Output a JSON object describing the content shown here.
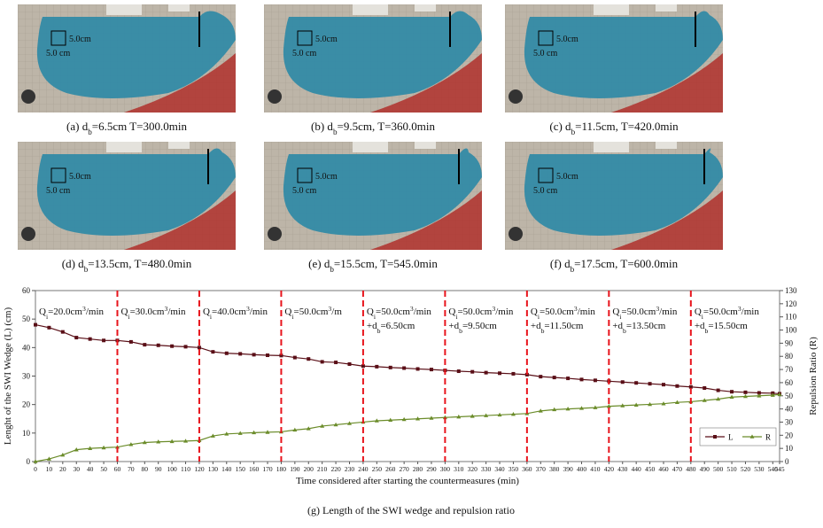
{
  "photos": [
    {
      "caption": [
        "(a) d",
        {
          "sub": "b"
        },
        "=6.5cm T=300.0min"
      ],
      "h_label": "5.0cm",
      "v_label": "5.0 cm"
    },
    {
      "caption": [
        "(b) d",
        {
          "sub": "b"
        },
        "=9.5cm, T=360.0min"
      ],
      "h_label": "5.0cm",
      "v_label": "5.0 cm"
    },
    {
      "caption": [
        "(c) d",
        {
          "sub": "b"
        },
        "=11.5cm, T=420.0min"
      ],
      "h_label": "5.0cm",
      "v_label": "5.0 cm"
    },
    {
      "caption": [
        "(d) d",
        {
          "sub": "b"
        },
        "=13.5cm, T=480.0min"
      ],
      "h_label": "5.0cm",
      "v_label": "5.0 cm"
    },
    {
      "caption": [
        "(e) d",
        {
          "sub": "b"
        },
        "=15.5cm, T=545.0min"
      ],
      "h_label": "5.0cm",
      "v_label": "5.0 cm"
    },
    {
      "caption": [
        "(f) d",
        {
          "sub": "b"
        },
        "=17.5cm, T=600.0min"
      ],
      "h_label": "5.0cm",
      "v_label": "5.0 cm"
    }
  ],
  "chart_data": {
    "type": "line",
    "caption": "(g) Length of the SWI wedge and repulsion ratio",
    "x_label": "Time considered after starting the countermeasures (min)",
    "y_label": "Lenght of the SWI Wedge (L) (cm)",
    "y2_label": "Repulsion Ratio (R)",
    "x": [
      0,
      10,
      20,
      30,
      40,
      50,
      60,
      70,
      80,
      90,
      100,
      110,
      120,
      130,
      140,
      150,
      160,
      170,
      180,
      190,
      200,
      210,
      220,
      230,
      240,
      250,
      260,
      270,
      280,
      290,
      300,
      310,
      320,
      330,
      340,
      350,
      360,
      370,
      380,
      390,
      400,
      410,
      420,
      430,
      440,
      450,
      460,
      470,
      480,
      490,
      500,
      510,
      520,
      530,
      540,
      545
    ],
    "xlim": [
      0,
      545
    ],
    "xticks": [
      0,
      10,
      20,
      30,
      40,
      50,
      60,
      70,
      80,
      90,
      100,
      110,
      120,
      130,
      140,
      150,
      160,
      170,
      180,
      190,
      200,
      210,
      220,
      230,
      240,
      250,
      260,
      270,
      280,
      290,
      300,
      310,
      320,
      330,
      340,
      350,
      360,
      370,
      380,
      390,
      400,
      410,
      420,
      430,
      440,
      450,
      460,
      470,
      480,
      490,
      500,
      510,
      520,
      530,
      540,
      545
    ],
    "ylim": [
      0,
      60
    ],
    "yticks": [
      0,
      10,
      20,
      30,
      40,
      50,
      60
    ],
    "y2lim": [
      0,
      130
    ],
    "y2ticks": [
      0,
      10,
      20,
      30,
      40,
      50,
      60,
      70,
      80,
      90,
      100,
      110,
      120,
      130
    ],
    "legend": "right",
    "series": [
      {
        "name": "L",
        "color": "#5a0f17",
        "marker": "square",
        "values": [
          48,
          47,
          45.5,
          43.5,
          43,
          42.5,
          42.5,
          42,
          41,
          40.8,
          40.5,
          40.3,
          40,
          38.5,
          38,
          37.8,
          37.5,
          37.3,
          37.2,
          36.5,
          36,
          35,
          34.8,
          34.2,
          33.5,
          33.3,
          33,
          32.8,
          32.5,
          32.3,
          32,
          31.7,
          31.5,
          31.2,
          31,
          30.8,
          30.5,
          29.8,
          29.5,
          29.2,
          28.8,
          28.5,
          28.2,
          27.9,
          27.6,
          27.3,
          27,
          26.5,
          26.2,
          25.8,
          25,
          24.5,
          24.3,
          24.1,
          24,
          23.8
        ]
      },
      {
        "name": "R",
        "color": "#6b8c2a",
        "marker": "triangle",
        "axis": "y2",
        "values": [
          0,
          2,
          5,
          9,
          10,
          10.5,
          11,
          13,
          14.5,
          15,
          15.3,
          15.6,
          16,
          19.5,
          21,
          21.5,
          22,
          22.3,
          22.6,
          24,
          25,
          27,
          28,
          29,
          30,
          31,
          31.5,
          32,
          32.5,
          33,
          33.5,
          34,
          34.5,
          35,
          35.5,
          36,
          36.5,
          38.5,
          39.5,
          40,
          40.5,
          41,
          42,
          42.5,
          43,
          43.5,
          44,
          45,
          45.5,
          46.5,
          47.5,
          49,
          49.5,
          50,
          50.5,
          51
        ]
      }
    ],
    "vlines": [
      60,
      120,
      180,
      240,
      300,
      360,
      420,
      480
    ],
    "vline_color": "#e8141c",
    "annotations": [
      {
        "lines": [
          [
            "Q",
            {
              "sub": "i"
            },
            "=20.0cm",
            {
              "sup": "3"
            },
            "/min"
          ]
        ]
      },
      {
        "lines": [
          [
            "Q",
            {
              "sub": "i"
            },
            "=30.0cm",
            {
              "sup": "3"
            },
            "/min"
          ]
        ]
      },
      {
        "lines": [
          [
            "Q",
            {
              "sub": "i"
            },
            "=40.0cm",
            {
              "sup": "3"
            },
            "/min"
          ]
        ]
      },
      {
        "lines": [
          [
            "Q",
            {
              "sub": "i"
            },
            "=50.0cm",
            {
              "sup": "3"
            },
            "/m"
          ]
        ]
      },
      {
        "lines": [
          [
            "Q",
            {
              "sub": "i"
            },
            "=50.0cm",
            {
              "sup": "3"
            },
            "/min"
          ],
          [
            "+d",
            {
              "sub": "b"
            },
            "=6.50cm"
          ]
        ]
      },
      {
        "lines": [
          [
            "Q",
            {
              "sub": "i"
            },
            "=50.0cm",
            {
              "sup": "3"
            },
            "/min"
          ],
          [
            "+d",
            {
              "sub": "b"
            },
            "=9.50cm"
          ]
        ]
      },
      {
        "lines": [
          [
            "Q",
            {
              "sub": "i"
            },
            "=50.0cm",
            {
              "sup": "3"
            },
            "/min"
          ],
          [
            "+d",
            {
              "sub": "b"
            },
            "=11.50cm"
          ]
        ]
      },
      {
        "lines": [
          [
            "Q",
            {
              "sub": "i"
            },
            "=50.0cm",
            {
              "sup": "3"
            },
            "/min"
          ],
          [
            "+d",
            {
              "sub": "b"
            },
            "=13.50cm"
          ]
        ]
      },
      {
        "lines": [
          [
            "Q",
            {
              "sub": "i"
            },
            "=50.0cm",
            {
              "sup": "3"
            },
            "/min"
          ],
          [
            "+d",
            {
              "sub": "b"
            },
            "=15.50cm"
          ]
        ]
      }
    ]
  }
}
